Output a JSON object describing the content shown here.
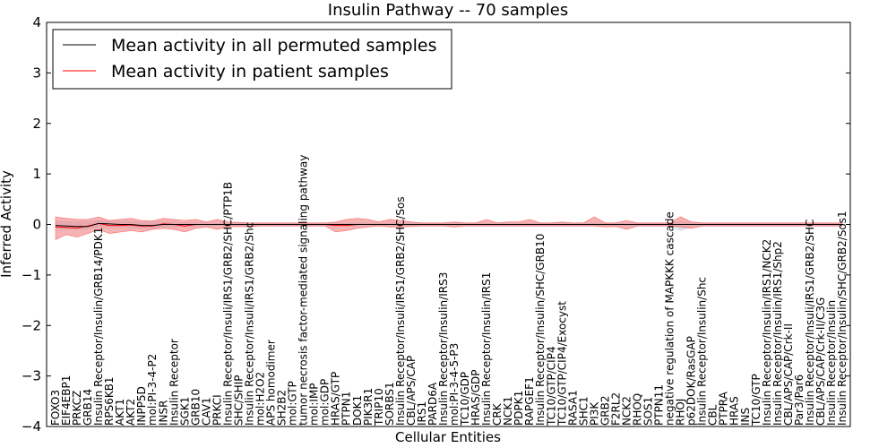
{
  "chart_data": {
    "type": "line",
    "title": "Insulin Pathway -- 70 samples",
    "xlabel": "Cellular Entities",
    "ylabel": "Inferred Activity",
    "ylim": [
      -4,
      4
    ],
    "yticks": [
      4,
      3,
      2,
      1,
      0,
      -1,
      -2,
      -3,
      -4
    ],
    "ytick_labels": [
      "4",
      "3",
      "2",
      "1",
      "0",
      "−1",
      "−2",
      "−3",
      "−4"
    ],
    "grid": false,
    "legend_position": "top-left",
    "colors": {
      "permuted_line": "#000000",
      "permuted_band": "#b0c4de",
      "patient_line": "#ff0000",
      "patient_band": "#f08080"
    },
    "categories": [
      "FOXO3",
      "EIF4EBP1",
      "PRKCZ",
      "GRB14",
      "Insulin Receptor/Insulin/GRB14/PDK1",
      "RPS6KB1",
      "AKT1",
      "AKT2",
      "INPP5D",
      "mol:PI-3-4-P2",
      "INSR",
      "Insulin Receptor",
      "SGK1",
      "GRB10",
      "CAV1",
      "PRKCI",
      "Insulin Receptor/Insuli/IRS1/GRB2/SHC/PTP1B",
      "SHC/SHIP",
      "Insulin Receptor/Insuli/IRS1/GRB2/Shc",
      "mol:H2O2",
      "APS homodimer",
      "SH2B2",
      "mol:GTP",
      "tumor necrosis factor-mediated signaling pathway",
      "mol:IMP",
      "mol:GDP",
      "HRAS/GTP",
      "PTPN1",
      "DOK1",
      "PIK3R1",
      "TRIP10",
      "SORBS1",
      "Insulin Receptor/Insuli/IRS1/GRB2/SHC/Sos",
      "CBL/APS/CAP",
      "IRS1",
      "PARD6A",
      "Insulin Receptor/Insulin/IRS3",
      "mol:PI-3-4-5-P3",
      "TC10/GDP",
      "HRAS/GDP",
      "Insulin Receptor/Insulin/IRS1",
      "CRK",
      "NCK1",
      "PDPK1",
      "RAPGEF1",
      "Insulin Receptor/Insulin/SHC/GRB10",
      "TC10/GTP/CIP4",
      "TC10/GTP/CIP4/Exocyst",
      "RASA1",
      "SHC1",
      "PI3K",
      "GRB2",
      "F2RL2",
      "NCK2",
      "RHOQ",
      "SOS1",
      "PTPN11",
      "negative regulation of MAPKKK cascade",
      "RHOJ",
      "p62DOK/RasGAP",
      "Insulin Receptor/Insulin/Shc",
      "CBL",
      "PTPRA",
      "HRAS",
      "INS",
      "TC10/GTP",
      "Insulin Receptor/Insulin/IRS1/NCK2",
      "Insulin Receptor/Insulin/IRS1/Shp2",
      "CBL/APS/CAP/Crk-II",
      "Par3/Par6",
      "Insulin Receptor/Insuli/IRS1/GRB2/SHC",
      "CBL/APS/CAP/Crk-II/C3G",
      "Insulin Receptor/Insulin",
      "Insulin Receptor/Insulin/SHC/GRB2/Sos1"
    ],
    "series": [
      {
        "name": "Mean activity in all permuted samples",
        "values": [
          -0.02,
          -0.03,
          -0.04,
          -0.04,
          0.02,
          0.01,
          0.0,
          0.0,
          -0.02,
          -0.02,
          0.0,
          0.0,
          0.0,
          0.0,
          0.0,
          0.0,
          0.0,
          0.0,
          0.0,
          0.0,
          0.0,
          0.0,
          0.0,
          0.0,
          0.0,
          0.0,
          0.0,
          0.0,
          0.0,
          0.0,
          0.0,
          0.0,
          0.0,
          0.0,
          0.0,
          0.0,
          0.0,
          0.0,
          0.0,
          0.0,
          0.0,
          0.0,
          0.0,
          0.0,
          0.0,
          0.0,
          0.0,
          0.0,
          0.0,
          0.0,
          0.0,
          0.0,
          0.0,
          0.0,
          0.0,
          0.0,
          0.0,
          0.0,
          0.0,
          0.0,
          0.0,
          0.0,
          0.0,
          0.0,
          0.0,
          0.0,
          0.0,
          0.0,
          0.0,
          0.0,
          0.0,
          0.0,
          0.0,
          0.0
        ],
        "lower": [
          -0.08,
          -0.09,
          -0.1,
          -0.09,
          -0.05,
          -0.05,
          -0.06,
          -0.06,
          -0.07,
          -0.07,
          -0.05,
          -0.05,
          -0.04,
          -0.04,
          -0.04,
          -0.03,
          -0.03,
          -0.03,
          -0.03,
          -0.03,
          -0.03,
          -0.03,
          -0.03,
          -0.03,
          -0.03,
          -0.03,
          -0.03,
          -0.03,
          -0.03,
          -0.03,
          -0.03,
          -0.03,
          -0.03,
          -0.03,
          -0.03,
          -0.03,
          -0.03,
          -0.03,
          -0.03,
          -0.03,
          -0.03,
          -0.03,
          -0.03,
          -0.03,
          -0.03,
          -0.03,
          -0.03,
          -0.03,
          -0.03,
          -0.03,
          -0.03,
          -0.03,
          -0.03,
          -0.03,
          -0.03,
          -0.03,
          -0.03,
          -0.03,
          -0.12,
          -0.04,
          -0.03,
          -0.03,
          -0.03,
          -0.03,
          -0.03,
          -0.03,
          -0.03,
          -0.03,
          -0.03,
          -0.03,
          -0.03,
          -0.03,
          -0.03,
          -0.03
        ],
        "upper": [
          0.06,
          0.06,
          0.05,
          0.06,
          0.08,
          0.07,
          0.06,
          0.06,
          0.05,
          0.05,
          0.05,
          0.05,
          0.04,
          0.04,
          0.04,
          0.03,
          0.03,
          0.03,
          0.03,
          0.03,
          0.03,
          0.03,
          0.03,
          0.03,
          0.03,
          0.03,
          0.03,
          0.03,
          0.03,
          0.03,
          0.03,
          0.03,
          0.03,
          0.03,
          0.03,
          0.03,
          0.03,
          0.03,
          0.03,
          0.03,
          0.03,
          0.03,
          0.03,
          0.03,
          0.03,
          0.03,
          0.03,
          0.03,
          0.03,
          0.03,
          0.03,
          0.03,
          0.03,
          0.03,
          0.03,
          0.03,
          0.03,
          0.03,
          0.05,
          0.04,
          0.03,
          0.03,
          0.03,
          0.03,
          0.03,
          0.03,
          0.03,
          0.03,
          0.03,
          0.03,
          0.03,
          0.03,
          0.03,
          0.03
        ]
      },
      {
        "name": "Mean activity in patient samples",
        "values": [
          -0.05,
          -0.06,
          -0.07,
          -0.03,
          0.02,
          -0.02,
          -0.02,
          -0.01,
          -0.03,
          -0.03,
          0.01,
          0.0,
          -0.03,
          0.0,
          0.0,
          0.0,
          0.0,
          0.0,
          0.0,
          0.0,
          0.0,
          0.0,
          0.0,
          0.0,
          0.0,
          0.0,
          -0.02,
          -0.02,
          0.0,
          0.0,
          0.0,
          0.0,
          0.0,
          0.0,
          0.0,
          0.0,
          0.0,
          0.0,
          0.0,
          0.0,
          0.0,
          0.0,
          0.0,
          0.0,
          0.0,
          0.0,
          0.0,
          0.0,
          0.0,
          0.0,
          0.0,
          0.0,
          0.0,
          0.0,
          0.0,
          0.0,
          0.0,
          0.0,
          0.0,
          0.0,
          0.0,
          0.0,
          0.0,
          0.0,
          0.0,
          0.0,
          0.0,
          0.0,
          0.0,
          0.0,
          0.0,
          0.0,
          0.0,
          0.0
        ],
        "lower": [
          -0.3,
          -0.2,
          -0.25,
          -0.18,
          -0.1,
          -0.18,
          -0.15,
          -0.12,
          -0.15,
          -0.1,
          -0.08,
          -0.1,
          -0.15,
          -0.08,
          -0.05,
          -0.1,
          -0.05,
          -0.04,
          -0.05,
          -0.03,
          -0.03,
          -0.03,
          -0.03,
          -0.03,
          -0.03,
          -0.03,
          -0.15,
          -0.12,
          -0.08,
          -0.05,
          -0.03,
          -0.05,
          -0.05,
          -0.04,
          -0.03,
          -0.03,
          -0.03,
          -0.05,
          -0.03,
          -0.03,
          -0.03,
          -0.03,
          -0.03,
          -0.03,
          -0.03,
          -0.03,
          -0.03,
          -0.03,
          -0.03,
          -0.03,
          -0.03,
          -0.05,
          -0.04,
          -0.1,
          -0.03,
          -0.03,
          -0.03,
          -0.03,
          -0.05,
          -0.08,
          -0.03,
          -0.03,
          -0.03,
          -0.03,
          -0.03,
          -0.03,
          -0.03,
          -0.03,
          -0.03,
          -0.03,
          -0.03,
          -0.03,
          -0.03,
          -0.03
        ],
        "upper": [
          0.15,
          0.12,
          0.1,
          0.1,
          0.15,
          0.08,
          0.1,
          0.12,
          0.08,
          0.07,
          0.12,
          0.1,
          0.08,
          0.1,
          0.05,
          0.1,
          0.05,
          0.04,
          0.03,
          0.03,
          0.03,
          0.03,
          0.03,
          0.03,
          0.03,
          0.03,
          0.05,
          0.1,
          0.12,
          0.1,
          0.05,
          0.1,
          0.08,
          0.05,
          0.03,
          0.03,
          0.03,
          0.05,
          0.03,
          0.03,
          0.1,
          0.03,
          0.05,
          0.05,
          0.1,
          0.03,
          0.03,
          0.05,
          0.03,
          0.03,
          0.15,
          0.03,
          0.03,
          0.08,
          0.03,
          0.03,
          0.03,
          0.03,
          0.15,
          0.05,
          0.03,
          0.03,
          0.03,
          0.03,
          0.03,
          0.03,
          0.03,
          0.03,
          0.03,
          0.03,
          0.03,
          0.03,
          0.03,
          0.03
        ]
      }
    ]
  }
}
